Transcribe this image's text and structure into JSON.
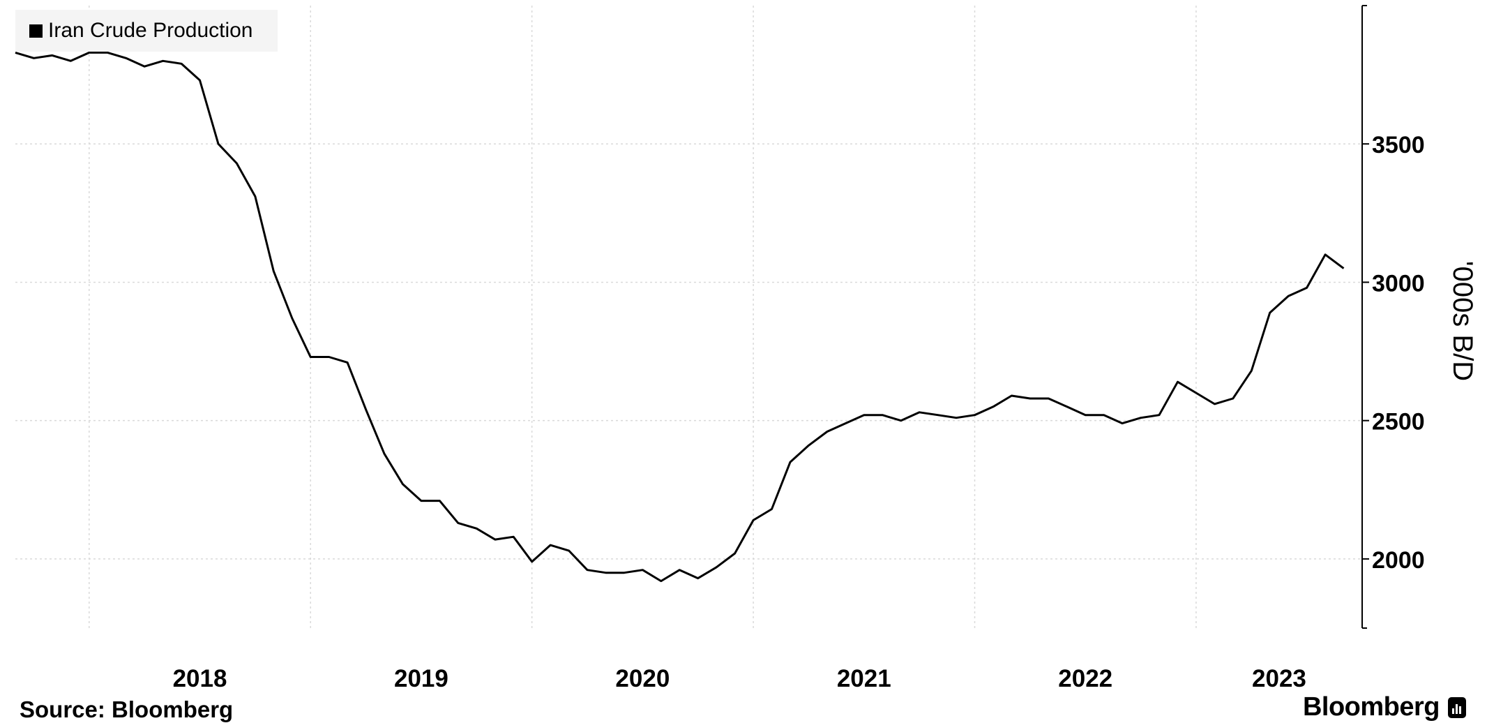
{
  "legend": {
    "series_name": "Iran Crude Production"
  },
  "y_axis_title": "'000s B/D",
  "source": "Source: Bloomberg",
  "brand": "Bloomberg",
  "brand_icon": "bloomberg-logo-icon",
  "colors": {
    "line": "#000000",
    "grid": "#d9d9d9",
    "legend_bg": "#f4f4f4"
  },
  "chart_data": {
    "type": "line",
    "title": "",
    "xlabel": "",
    "ylabel": "'000s B/D",
    "y_axis_side": "right",
    "ylim": [
      1750,
      4000
    ],
    "yticks": [
      2000,
      2500,
      3000,
      3500
    ],
    "xlim": [
      "2017-09",
      "2023-10"
    ],
    "x_tick_labels": [
      "2018",
      "2019",
      "2020",
      "2021",
      "2022",
      "2023"
    ],
    "grid": true,
    "legend_placement": "top-left",
    "series": [
      {
        "name": "Iran Crude Production",
        "x": [
          "2017-09",
          "2017-10",
          "2017-11",
          "2017-12",
          "2018-01",
          "2018-02",
          "2018-03",
          "2018-04",
          "2018-05",
          "2018-06",
          "2018-07",
          "2018-08",
          "2018-09",
          "2018-10",
          "2018-11",
          "2018-12",
          "2019-01",
          "2019-02",
          "2019-03",
          "2019-04",
          "2019-05",
          "2019-06",
          "2019-07",
          "2019-08",
          "2019-09",
          "2019-10",
          "2019-11",
          "2019-12",
          "2020-01",
          "2020-02",
          "2020-03",
          "2020-04",
          "2020-05",
          "2020-06",
          "2020-07",
          "2020-08",
          "2020-09",
          "2020-10",
          "2020-11",
          "2020-12",
          "2021-01",
          "2021-02",
          "2021-03",
          "2021-04",
          "2021-05",
          "2021-06",
          "2021-07",
          "2021-08",
          "2021-09",
          "2021-10",
          "2021-11",
          "2021-12",
          "2022-01",
          "2022-02",
          "2022-03",
          "2022-04",
          "2022-05",
          "2022-06",
          "2022-07",
          "2022-08",
          "2022-09",
          "2022-10",
          "2022-11",
          "2022-12",
          "2023-01",
          "2023-02",
          "2023-03",
          "2023-04",
          "2023-05",
          "2023-06",
          "2023-07",
          "2023-08",
          "2023-09"
        ],
        "values": [
          3830,
          3810,
          3820,
          3800,
          3830,
          3830,
          3810,
          3780,
          3800,
          3790,
          3730,
          3500,
          3430,
          3310,
          3040,
          2870,
          2730,
          2730,
          2710,
          2540,
          2380,
          2270,
          2210,
          2210,
          2130,
          2110,
          2070,
          2080,
          1990,
          2050,
          2030,
          1960,
          1950,
          1950,
          1960,
          1920,
          1960,
          1930,
          1970,
          2020,
          2140,
          2180,
          2350,
          2410,
          2460,
          2490,
          2520,
          2520,
          2500,
          2530,
          2520,
          2510,
          2520,
          2550,
          2590,
          2580,
          2580,
          2550,
          2520,
          2520,
          2490,
          2510,
          2520,
          2640,
          2600,
          2560,
          2580,
          2680,
          2890,
          2950,
          2980,
          3100,
          3050
        ]
      }
    ]
  }
}
